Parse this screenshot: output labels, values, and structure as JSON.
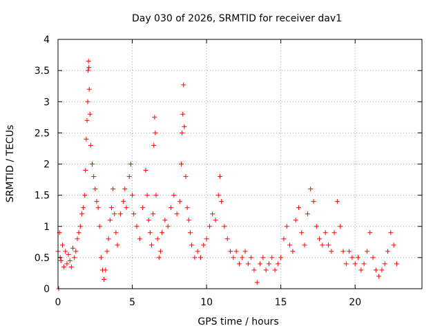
{
  "chart_data": {
    "type": "scatter",
    "title": "Day 030 of 2026, SRMTID for receiver dav1",
    "xlabel": "GPS time / hours",
    "ylabel": "SRMTID / TECUs",
    "xlim": [
      0,
      24.5
    ],
    "ylim": [
      0,
      4
    ],
    "grid": true,
    "marker": "+",
    "marker_color": "#ff0000",
    "x_ticks": [
      0,
      5,
      10,
      15,
      20
    ],
    "x_tick_labels": [
      "0",
      "5",
      "10",
      "15",
      "20"
    ],
    "y_ticks": [
      0,
      0.5,
      1,
      1.5,
      2,
      2.5,
      3,
      3.5,
      4
    ],
    "y_tick_labels": [
      "0",
      "0.5",
      "1",
      "1.5",
      "2",
      "2.5",
      "3",
      "3.5",
      "4"
    ],
    "series": [
      {
        "name": "SRMTID dav1",
        "time_step_hours": 0.05,
        "points": [
          [
            0.0,
            0.6
          ],
          [
            0.05,
            0.0
          ],
          [
            0.1,
            0.9
          ],
          [
            0.15,
            0.5
          ],
          [
            0.2,
            0.45
          ],
          [
            0.3,
            0.7
          ],
          [
            0.4,
            0.35
          ],
          [
            0.5,
            0.6
          ],
          [
            0.6,
            0.4
          ],
          [
            0.7,
            0.55
          ],
          [
            0.8,
            0.45
          ],
          [
            0.9,
            0.35
          ],
          [
            1.0,
            0.65
          ],
          [
            1.1,
            0.5
          ],
          [
            1.2,
            0.6
          ],
          [
            1.3,
            0.8
          ],
          [
            1.4,
            0.9
          ],
          [
            1.5,
            1.0
          ],
          [
            1.6,
            1.2
          ],
          [
            1.7,
            1.3
          ],
          [
            1.8,
            1.5
          ],
          [
            1.85,
            1.9
          ],
          [
            1.9,
            2.4
          ],
          [
            1.95,
            2.7
          ],
          [
            2.0,
            3.0
          ],
          [
            2.02,
            3.5
          ],
          [
            2.05,
            3.65
          ],
          [
            2.08,
            3.55
          ],
          [
            2.1,
            3.2
          ],
          [
            2.15,
            2.8
          ],
          [
            2.2,
            2.3
          ],
          [
            2.3,
            2.0
          ],
          [
            2.4,
            1.8
          ],
          [
            2.5,
            1.6
          ],
          [
            2.6,
            1.4
          ],
          [
            2.7,
            1.3
          ],
          [
            2.8,
            1.0
          ],
          [
            2.9,
            0.5
          ],
          [
            3.0,
            0.3
          ],
          [
            3.1,
            0.15
          ],
          [
            3.2,
            0.3
          ],
          [
            3.3,
            0.6
          ],
          [
            3.4,
            0.8
          ],
          [
            3.5,
            1.1
          ],
          [
            3.6,
            1.3
          ],
          [
            3.7,
            1.6
          ],
          [
            3.8,
            1.2
          ],
          [
            3.9,
            0.9
          ],
          [
            4.0,
            0.7
          ],
          [
            4.2,
            1.2
          ],
          [
            4.4,
            1.4
          ],
          [
            4.5,
            1.6
          ],
          [
            4.6,
            1.3
          ],
          [
            4.8,
            1.8
          ],
          [
            4.9,
            2.0
          ],
          [
            5.0,
            1.5
          ],
          [
            5.1,
            1.2
          ],
          [
            5.3,
            1.0
          ],
          [
            5.5,
            0.8
          ],
          [
            5.7,
            1.3
          ],
          [
            5.9,
            1.9
          ],
          [
            6.0,
            1.5
          ],
          [
            6.1,
            1.1
          ],
          [
            6.2,
            0.9
          ],
          [
            6.3,
            0.7
          ],
          [
            6.4,
            1.2
          ],
          [
            6.45,
            2.3
          ],
          [
            6.5,
            2.75
          ],
          [
            6.55,
            2.5
          ],
          [
            6.6,
            1.5
          ],
          [
            6.7,
            0.8
          ],
          [
            6.8,
            0.5
          ],
          [
            6.9,
            0.6
          ],
          [
            7.0,
            0.9
          ],
          [
            7.2,
            1.1
          ],
          [
            7.4,
            1.0
          ],
          [
            7.6,
            1.3
          ],
          [
            7.8,
            1.5
          ],
          [
            8.0,
            1.2
          ],
          [
            8.2,
            1.4
          ],
          [
            8.3,
            2.0
          ],
          [
            8.35,
            2.5
          ],
          [
            8.4,
            2.8
          ],
          [
            8.45,
            3.27
          ],
          [
            8.5,
            2.6
          ],
          [
            8.6,
            1.8
          ],
          [
            8.7,
            1.3
          ],
          [
            8.8,
            1.1
          ],
          [
            8.9,
            0.9
          ],
          [
            9.0,
            0.7
          ],
          [
            9.2,
            0.5
          ],
          [
            9.4,
            0.6
          ],
          [
            9.6,
            0.5
          ],
          [
            9.8,
            0.7
          ],
          [
            10.0,
            0.8
          ],
          [
            10.2,
            1.0
          ],
          [
            10.4,
            1.2
          ],
          [
            10.6,
            1.1
          ],
          [
            10.8,
            1.5
          ],
          [
            10.9,
            1.8
          ],
          [
            11.0,
            1.4
          ],
          [
            11.2,
            1.0
          ],
          [
            11.4,
            0.8
          ],
          [
            11.6,
            0.6
          ],
          [
            11.8,
            0.5
          ],
          [
            12.0,
            0.6
          ],
          [
            12.2,
            0.4
          ],
          [
            12.4,
            0.5
          ],
          [
            12.6,
            0.6
          ],
          [
            12.8,
            0.4
          ],
          [
            13.0,
            0.5
          ],
          [
            13.2,
            0.3
          ],
          [
            13.4,
            0.1
          ],
          [
            13.6,
            0.4
          ],
          [
            13.8,
            0.5
          ],
          [
            14.0,
            0.3
          ],
          [
            14.2,
            0.4
          ],
          [
            14.4,
            0.5
          ],
          [
            14.6,
            0.3
          ],
          [
            14.8,
            0.4
          ],
          [
            15.0,
            0.5
          ],
          [
            15.2,
            0.8
          ],
          [
            15.4,
            1.0
          ],
          [
            15.6,
            0.7
          ],
          [
            15.8,
            0.6
          ],
          [
            16.0,
            1.1
          ],
          [
            16.2,
            1.3
          ],
          [
            16.4,
            0.9
          ],
          [
            16.6,
            0.7
          ],
          [
            16.8,
            1.2
          ],
          [
            17.0,
            1.6
          ],
          [
            17.2,
            1.4
          ],
          [
            17.4,
            1.0
          ],
          [
            17.6,
            0.8
          ],
          [
            17.8,
            0.7
          ],
          [
            18.0,
            0.9
          ],
          [
            18.2,
            0.7
          ],
          [
            18.4,
            0.6
          ],
          [
            18.6,
            0.9
          ],
          [
            18.8,
            1.4
          ],
          [
            19.0,
            1.0
          ],
          [
            19.2,
            0.6
          ],
          [
            19.4,
            0.4
          ],
          [
            19.6,
            0.6
          ],
          [
            19.8,
            0.5
          ],
          [
            20.0,
            0.4
          ],
          [
            20.2,
            0.5
          ],
          [
            20.4,
            0.3
          ],
          [
            20.6,
            0.4
          ],
          [
            20.8,
            0.6
          ],
          [
            21.0,
            0.9
          ],
          [
            21.2,
            0.5
          ],
          [
            21.4,
            0.3
          ],
          [
            21.6,
            0.2
          ],
          [
            21.8,
            0.3
          ],
          [
            22.0,
            0.4
          ],
          [
            22.2,
            0.6
          ],
          [
            22.4,
            0.9
          ],
          [
            22.6,
            0.7
          ],
          [
            22.8,
            0.4
          ]
        ]
      }
    ]
  }
}
